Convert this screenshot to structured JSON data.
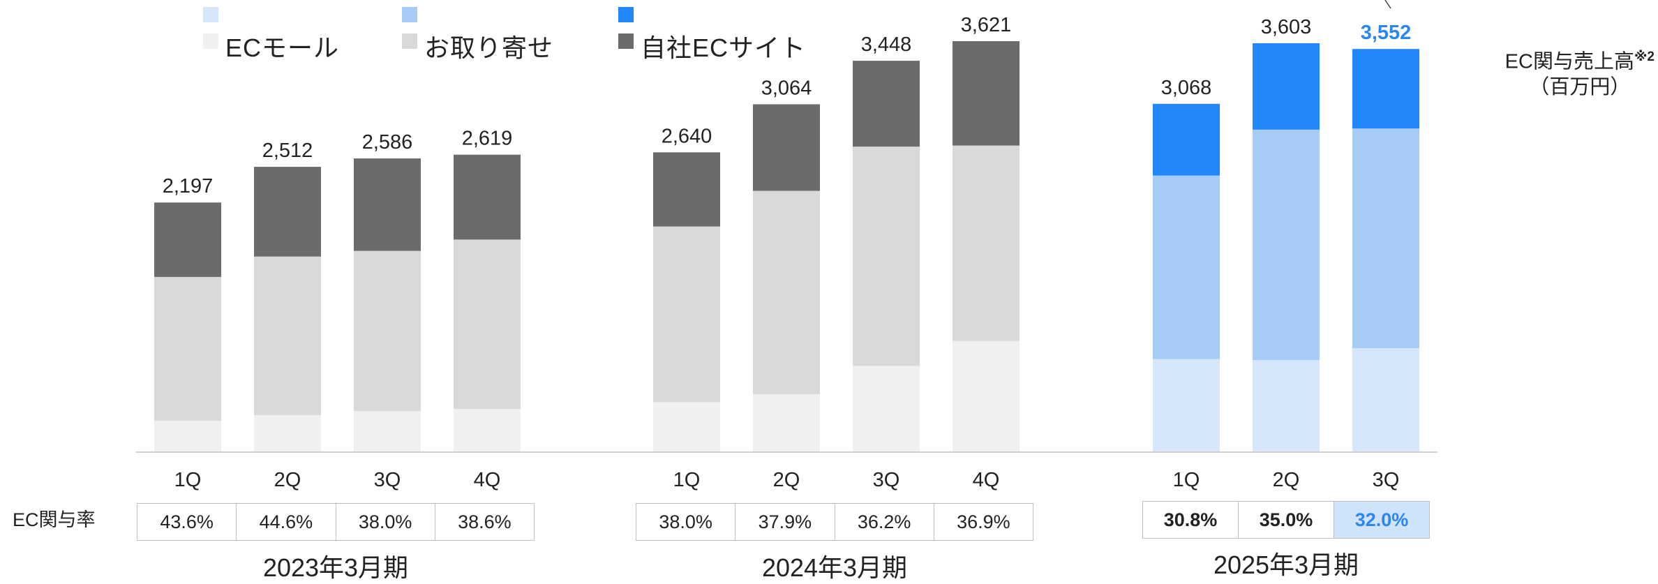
{
  "legend": [
    {
      "label": "ECモール",
      "color_2025": "#d6e7fc",
      "color_prior": "#f0f0f0"
    },
    {
      "label": "お取り寄せ",
      "color_2025": "#a7cdf7",
      "color_prior": "#d9d9d9"
    },
    {
      "label": "自社ECサイト",
      "color_2025": "#2287fa",
      "color_prior": "#6b6b6b"
    }
  ],
  "unit_label": {
    "line1": "EC関与売上高",
    "sup": "※2",
    "line2": "（百万円）"
  },
  "rate_row_label": "EC関与率",
  "highlight_color": "#2b86ee",
  "chart_data": {
    "type": "bar",
    "stacked": true,
    "ylabel": "EC関与売上高※2（百万円）",
    "ylim": [
      0,
      3700
    ],
    "groups": [
      {
        "period": "2023年3月期",
        "categories": [
          "1Q",
          "2Q",
          "3Q",
          "4Q"
        ],
        "totals": [
          2197,
          2512,
          2586,
          2619
        ],
        "total_labels": [
          "2,197",
          "2,512",
          "2,586",
          "2,619"
        ],
        "series": [
          {
            "name": "ECモール",
            "values": [
              270,
              320,
              355,
              375
            ]
          },
          {
            "name": "お取り寄せ",
            "values": [
              1270,
              1400,
              1415,
              1495
            ]
          },
          {
            "name": "自社ECサイト",
            "values": [
              657,
              792,
              816,
              749
            ]
          }
        ],
        "ec_rate": [
          "43.6%",
          "44.6%",
          "38.0%",
          "38.6%"
        ]
      },
      {
        "period": "2024年3月期",
        "categories": [
          "1Q",
          "2Q",
          "3Q",
          "4Q"
        ],
        "totals": [
          2640,
          3064,
          3448,
          3621
        ],
        "total_labels": [
          "2,640",
          "3,064",
          "3,448",
          "3,621"
        ],
        "series": [
          {
            "name": "ECモール",
            "values": [
              435,
              505,
              755,
              975
            ]
          },
          {
            "name": "お取り寄せ",
            "values": [
              1550,
              1795,
              1935,
              1725
            ]
          },
          {
            "name": "自社ECサイト",
            "values": [
              655,
              764,
              758,
              921
            ]
          }
        ],
        "ec_rate": [
          "38.0%",
          "37.9%",
          "36.2%",
          "36.9%"
        ]
      },
      {
        "period": "2025年3月期",
        "categories": [
          "1Q",
          "2Q",
          "3Q"
        ],
        "totals": [
          3068,
          3603,
          3552
        ],
        "total_labels": [
          "3,068",
          "3,603",
          "3,552"
        ],
        "series": [
          {
            "name": "ECモール",
            "values": [
              815,
              805,
              910
            ]
          },
          {
            "name": "お取り寄せ",
            "values": [
              1620,
              2035,
              1940
            ]
          },
          {
            "name": "自社ECサイト",
            "values": [
              633,
              763,
              702
            ]
          }
        ],
        "ec_rate": [
          "30.8%",
          "35.0%",
          "32.0%"
        ],
        "highlight_index": 2
      }
    ]
  }
}
